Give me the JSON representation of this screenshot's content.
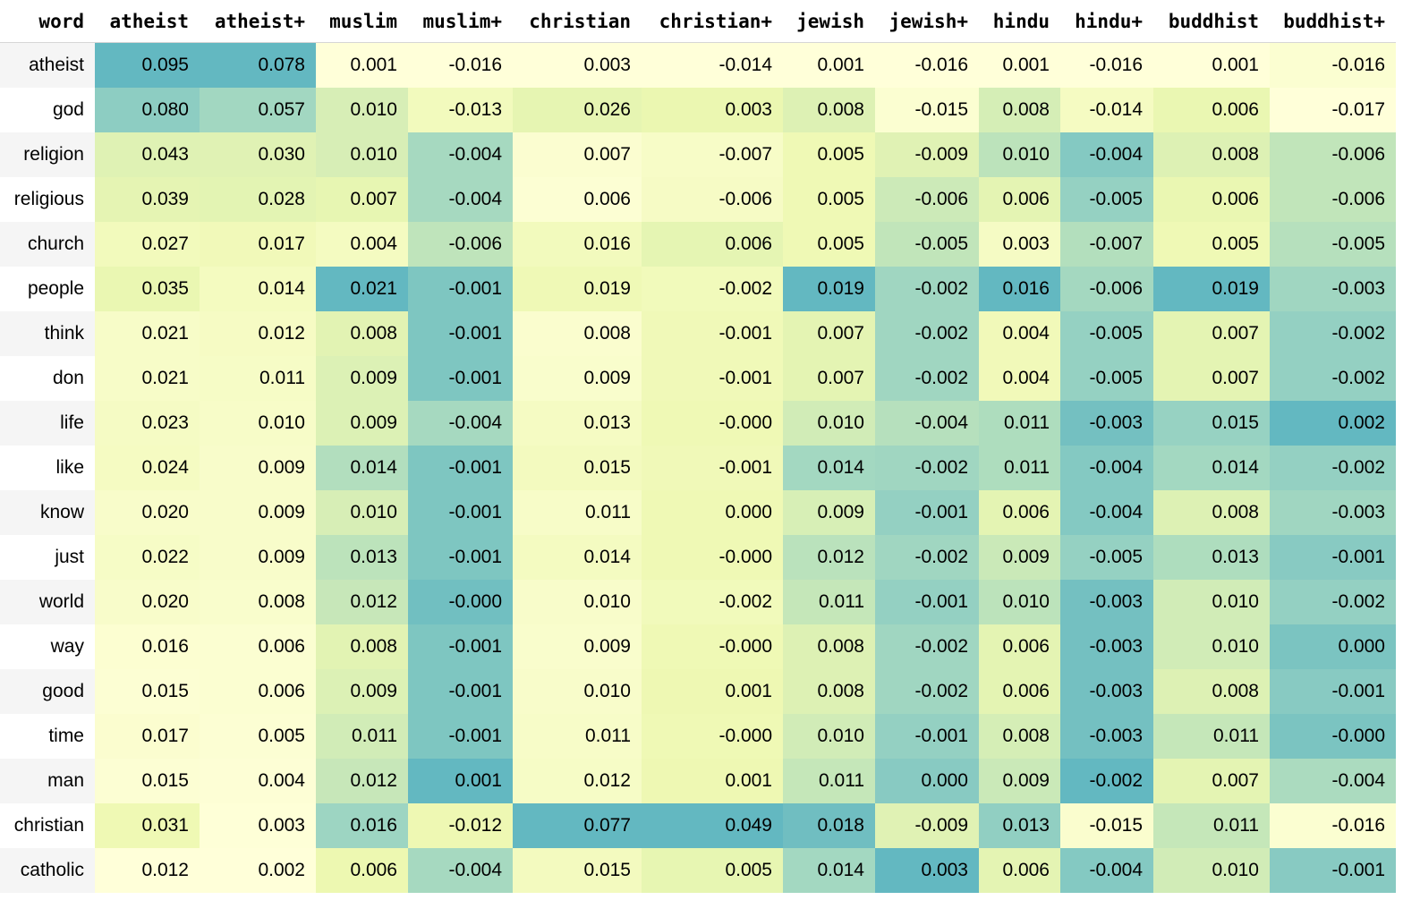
{
  "table": {
    "columns": [
      "word",
      "atheist",
      "atheist+",
      "muslim",
      "muslim+",
      "christian",
      "christian+",
      "jewish",
      "jewish+",
      "hindu",
      "hindu+",
      "buddhist",
      "buddhist+"
    ],
    "rows": [
      {
        "word": "atheist",
        "values": [
          "0.095",
          "0.078",
          "0.001",
          "-0.016",
          "0.003",
          "-0.014",
          "0.001",
          "-0.016",
          "0.001",
          "-0.016",
          "0.001",
          "-0.016"
        ]
      },
      {
        "word": "god",
        "values": [
          "0.080",
          "0.057",
          "0.010",
          "-0.013",
          "0.026",
          "0.003",
          "0.008",
          "-0.015",
          "0.008",
          "-0.014",
          "0.006",
          "-0.017"
        ]
      },
      {
        "word": "religion",
        "values": [
          "0.043",
          "0.030",
          "0.010",
          "-0.004",
          "0.007",
          "-0.007",
          "0.005",
          "-0.009",
          "0.010",
          "-0.004",
          "0.008",
          "-0.006"
        ]
      },
      {
        "word": "religious",
        "values": [
          "0.039",
          "0.028",
          "0.007",
          "-0.004",
          "0.006",
          "-0.006",
          "0.005",
          "-0.006",
          "0.006",
          "-0.005",
          "0.006",
          "-0.006"
        ]
      },
      {
        "word": "church",
        "values": [
          "0.027",
          "0.017",
          "0.004",
          "-0.006",
          "0.016",
          "0.006",
          "0.005",
          "-0.005",
          "0.003",
          "-0.007",
          "0.005",
          "-0.005"
        ]
      },
      {
        "word": "people",
        "values": [
          "0.035",
          "0.014",
          "0.021",
          "-0.001",
          "0.019",
          "-0.002",
          "0.019",
          "-0.002",
          "0.016",
          "-0.006",
          "0.019",
          "-0.003"
        ]
      },
      {
        "word": "think",
        "values": [
          "0.021",
          "0.012",
          "0.008",
          "-0.001",
          "0.008",
          "-0.001",
          "0.007",
          "-0.002",
          "0.004",
          "-0.005",
          "0.007",
          "-0.002"
        ]
      },
      {
        "word": "don",
        "values": [
          "0.021",
          "0.011",
          "0.009",
          "-0.001",
          "0.009",
          "-0.001",
          "0.007",
          "-0.002",
          "0.004",
          "-0.005",
          "0.007",
          "-0.002"
        ]
      },
      {
        "word": "life",
        "values": [
          "0.023",
          "0.010",
          "0.009",
          "-0.004",
          "0.013",
          "-0.000",
          "0.010",
          "-0.004",
          "0.011",
          "-0.003",
          "0.015",
          "0.002"
        ]
      },
      {
        "word": "like",
        "values": [
          "0.024",
          "0.009",
          "0.014",
          "-0.001",
          "0.015",
          "-0.001",
          "0.014",
          "-0.002",
          "0.011",
          "-0.004",
          "0.014",
          "-0.002"
        ]
      },
      {
        "word": "know",
        "values": [
          "0.020",
          "0.009",
          "0.010",
          "-0.001",
          "0.011",
          "0.000",
          "0.009",
          "-0.001",
          "0.006",
          "-0.004",
          "0.008",
          "-0.003"
        ]
      },
      {
        "word": "just",
        "values": [
          "0.022",
          "0.009",
          "0.013",
          "-0.001",
          "0.014",
          "-0.000",
          "0.012",
          "-0.002",
          "0.009",
          "-0.005",
          "0.013",
          "-0.001"
        ]
      },
      {
        "word": "world",
        "values": [
          "0.020",
          "0.008",
          "0.012",
          "-0.000",
          "0.010",
          "-0.002",
          "0.011",
          "-0.001",
          "0.010",
          "-0.003",
          "0.010",
          "-0.002"
        ]
      },
      {
        "word": "way",
        "values": [
          "0.016",
          "0.006",
          "0.008",
          "-0.001",
          "0.009",
          "-0.000",
          "0.008",
          "-0.002",
          "0.006",
          "-0.003",
          "0.010",
          "0.000"
        ]
      },
      {
        "word": "good",
        "values": [
          "0.015",
          "0.006",
          "0.009",
          "-0.001",
          "0.010",
          "0.001",
          "0.008",
          "-0.002",
          "0.006",
          "-0.003",
          "0.008",
          "-0.001"
        ]
      },
      {
        "word": "time",
        "values": [
          "0.017",
          "0.005",
          "0.011",
          "-0.001",
          "0.011",
          "-0.000",
          "0.010",
          "-0.001",
          "0.008",
          "-0.003",
          "0.011",
          "-0.000"
        ]
      },
      {
        "word": "man",
        "values": [
          "0.015",
          "0.004",
          "0.012",
          "0.001",
          "0.012",
          "0.001",
          "0.011",
          "0.000",
          "0.009",
          "-0.002",
          "0.007",
          "-0.004"
        ]
      },
      {
        "word": "christian",
        "values": [
          "0.031",
          "0.003",
          "0.016",
          "-0.012",
          "0.077",
          "0.049",
          "0.018",
          "-0.009",
          "0.013",
          "-0.015",
          "0.011",
          "-0.016"
        ]
      },
      {
        "word": "catholic",
        "values": [
          "0.012",
          "0.002",
          "0.006",
          "-0.004",
          "0.015",
          "0.005",
          "0.014",
          "0.003",
          "0.006",
          "-0.004",
          "0.010",
          "-0.001"
        ]
      }
    ]
  },
  "colors": {
    "scale_low": "#ffffd9",
    "scale_mid": "#d9f0b3",
    "scale_high": "#63b8c1",
    "index_even_bg": "#f5f5f5",
    "index_odd_bg": "#ffffff"
  }
}
